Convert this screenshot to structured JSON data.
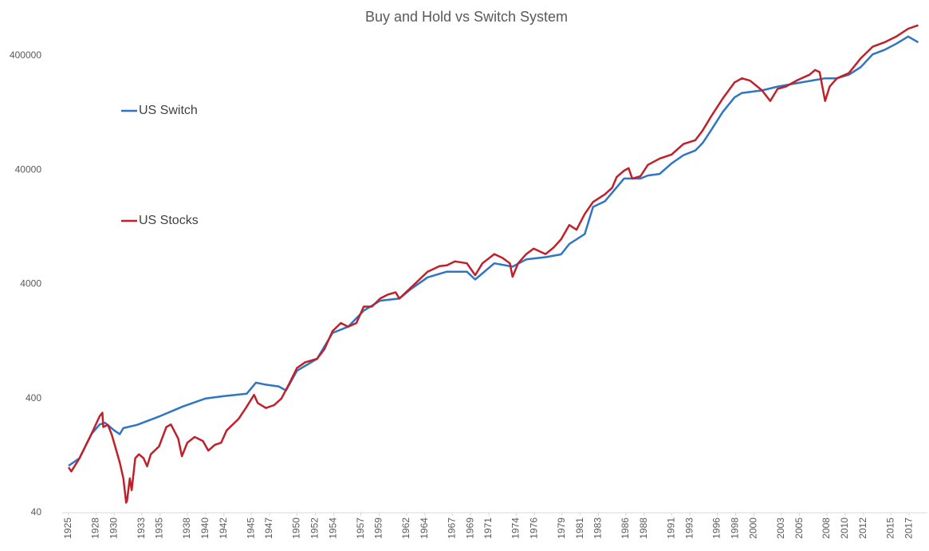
{
  "chart_data": {
    "type": "line",
    "title": "Buy and Hold vs Switch System",
    "log_y": true,
    "grid": false,
    "legend": "left",
    "xlim": [
      1925,
      2019
    ],
    "xticks": [
      1925,
      1928,
      1930,
      1933,
      1935,
      1938,
      1940,
      1942,
      1945,
      1947,
      1950,
      1952,
      1954,
      1957,
      1959,
      1962,
      1964,
      1967,
      1969,
      1971,
      1974,
      1976,
      1979,
      1981,
      1983,
      1986,
      1988,
      1991,
      1993,
      1996,
      1998,
      2000,
      2003,
      2005,
      2008,
      2010,
      2012,
      2015,
      2017
    ],
    "ylim": [
      40,
      760000
    ],
    "yticks": [
      40,
      400,
      4000,
      40000,
      400000
    ],
    "series": [
      {
        "name": "US Switch",
        "color": "#2e75c6",
        "x": [
          1925,
          1926.2,
          1927.5,
          1928.4,
          1929,
          1930,
          1930.6,
          1931,
          1932.5,
          1935,
          1937.5,
          1940,
          1942,
          1944.5,
          1945.5,
          1946.5,
          1948,
          1948.8,
          1950,
          1952.2,
          1953.9,
          1955.6,
          1957.3,
          1959.1,
          1961.2,
          1962.5,
          1964.3,
          1966.4,
          1968.6,
          1969.5,
          1971.6,
          1973.6,
          1975.1,
          1977.2,
          1978.9,
          1979.8,
          1981.5,
          1982.4,
          1983.7,
          1985.8,
          1987.6,
          1988.4,
          1989.7,
          1991,
          1992.3,
          1993.6,
          1994.4,
          1995.3,
          1996.6,
          1997.9,
          1998.7,
          2000.9,
          2002.6,
          2004.8,
          2006.7,
          2007.8,
          2009.1,
          2010.4,
          2011.7,
          2013,
          2014.3,
          2015.6,
          2016.9,
          2018
        ],
        "values": [
          103,
          120,
          195,
          237,
          245,
          210,
          195,
          220,
          235,
          280,
          340,
          400,
          420,
          440,
          550,
          530,
          510,
          470,
          700,
          890,
          1500,
          1700,
          2350,
          2870,
          3000,
          3650,
          4600,
          5150,
          5150,
          4400,
          6100,
          5700,
          6600,
          6900,
          7300,
          9000,
          11000,
          19000,
          21300,
          33700,
          33700,
          35800,
          37000,
          45700,
          53900,
          59300,
          68900,
          88700,
          129000,
          173000,
          189000,
          199000,
          215000,
          231000,
          245000,
          254000,
          254000,
          273000,
          318000,
          411000,
          450000,
          510000,
          590000,
          524000
        ]
      },
      {
        "name": "US Stocks",
        "color": "#c0202a",
        "x": [
          1925,
          1925.3,
          1926.2,
          1927.5,
          1928.4,
          1928.7,
          1928.8,
          1929.3,
          1929.7,
          1930.1,
          1930.6,
          1931,
          1931.3,
          1931.4,
          1931.7,
          1931.9,
          1932.3,
          1932.7,
          1933.2,
          1933.6,
          1934,
          1934.9,
          1935.7,
          1936.2,
          1937,
          1937.4,
          1938,
          1938.8,
          1939.7,
          1940.3,
          1941,
          1941.7,
          1942.3,
          1943.6,
          1944.4,
          1945.3,
          1945.7,
          1946.6,
          1947.5,
          1948.3,
          1949.2,
          1950,
          1950.9,
          1952.2,
          1953,
          1953.9,
          1954.8,
          1955.6,
          1956.5,
          1957.3,
          1958.2,
          1959.1,
          1959.9,
          1960.8,
          1961.2,
          1962.5,
          1963.4,
          1964.3,
          1965.6,
          1966.4,
          1967.3,
          1968.6,
          1969.5,
          1970.3,
          1971.6,
          1972.5,
          1973.3,
          1973.6,
          1974.2,
          1975.1,
          1975.9,
          1977.2,
          1978.1,
          1978.9,
          1979.8,
          1980.6,
          1981.5,
          1982.4,
          1983.7,
          1984.5,
          1985,
          1985.8,
          1986.3,
          1986.7,
          1987.6,
          1988.4,
          1989.7,
          1991,
          1992.3,
          1993.6,
          1994.4,
          1995.3,
          1996.6,
          1997.9,
          1998.7,
          1999.6,
          2000.9,
          2001.8,
          2002.6,
          2003.5,
          2004.8,
          2006.1,
          2006.7,
          2007.2,
          2007.8,
          2008.3,
          2009.1,
          2010.4,
          2011.7,
          2013,
          2014.3,
          2015.6,
          2016.9,
          2018
        ],
        "values": [
          100,
          92,
          120,
          195,
          280,
          300,
          225,
          235,
          195,
          152,
          110,
          80,
          49,
          51,
          80,
          63,
          120,
          130,
          120,
          102,
          130,
          152,
          225,
          237,
          178,
          125,
          164,
          184,
          170,
          140,
          157,
          164,
          210,
          265,
          330,
          430,
          365,
          330,
          350,
          400,
          550,
          740,
          830,
          890,
          1080,
          1560,
          1830,
          1700,
          1830,
          2550,
          2550,
          3000,
          3240,
          3400,
          3000,
          3760,
          4400,
          5150,
          5770,
          5850,
          6340,
          6100,
          4800,
          6100,
          7350,
          6800,
          6100,
          4650,
          6100,
          7350,
          8200,
          7350,
          8400,
          9900,
          13200,
          12000,
          16500,
          21000,
          24500,
          28000,
          34800,
          39500,
          41500,
          33700,
          35300,
          44300,
          50400,
          54600,
          67500,
          73000,
          88700,
          117000,
          169000,
          234000,
          254000,
          242000,
          199000,
          161000,
          205000,
          215000,
          245000,
          273000,
          300000,
          288000,
          161000,
          215000,
          254000,
          282000,
          380000,
          480000,
          524000,
          590000,
          690000,
          740000
        ]
      }
    ]
  }
}
